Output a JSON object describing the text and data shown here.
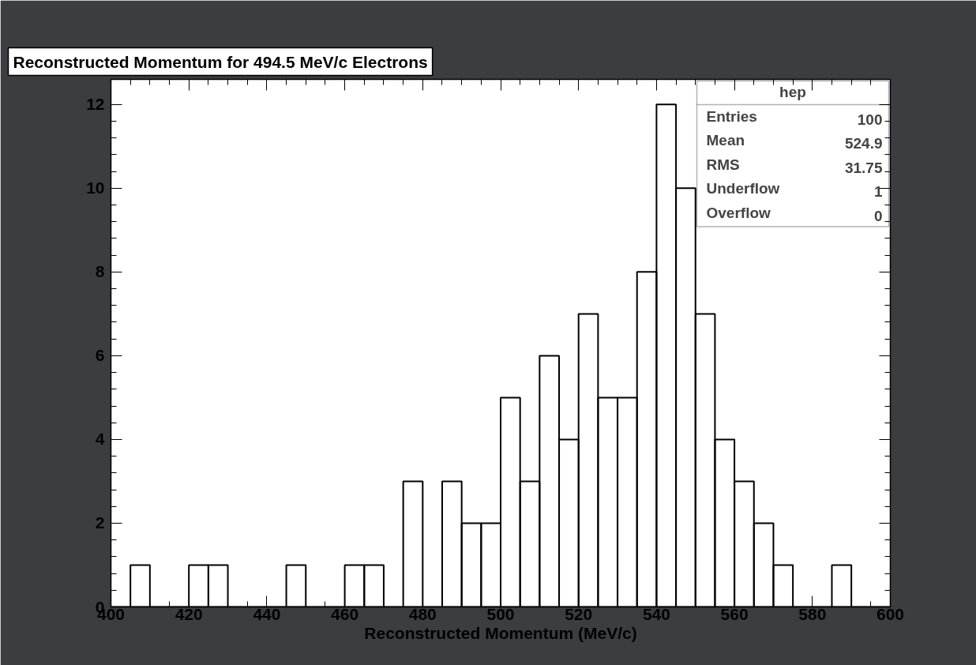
{
  "chart_data": {
    "type": "histogram",
    "title": "Reconstructed Momentum for 494.5 MeV/c Electrons",
    "xlabel": "Reconstructed Momentum (MeV/c)",
    "bins": [
      400,
      405,
      410,
      415,
      420,
      425,
      430,
      435,
      440,
      445,
      450,
      455,
      460,
      465,
      470,
      475,
      480,
      485,
      490,
      495,
      500,
      505,
      510,
      515,
      520,
      525,
      530,
      535,
      540,
      545,
      550,
      555,
      560,
      565,
      570,
      575,
      580,
      585,
      590,
      595,
      600
    ],
    "values": [
      0,
      1,
      0,
      0,
      1,
      1,
      0,
      0,
      0,
      1,
      0,
      0,
      1,
      1,
      0,
      3,
      0,
      3,
      2,
      2,
      5,
      3,
      6,
      4,
      7,
      5,
      5,
      8,
      12,
      10,
      7,
      4,
      3,
      2,
      1,
      0,
      0,
      1,
      0,
      0
    ],
    "color": "#000000",
    "xlim": [
      400,
      600
    ],
    "xticks": [
      400,
      420,
      440,
      460,
      480,
      500,
      520,
      540,
      560,
      580,
      600
    ],
    "ylim": [
      0,
      12.6
    ],
    "yticks": [
      0,
      2,
      4,
      6,
      8,
      10,
      12
    ],
    "grid": false,
    "legend": false,
    "annotations": [
      "hep",
      "Entries",
      "100",
      "Mean",
      "524.9",
      "RMS",
      "31.75",
      "Underflow",
      "1",
      "Overflow",
      "0"
    ]
  }
}
